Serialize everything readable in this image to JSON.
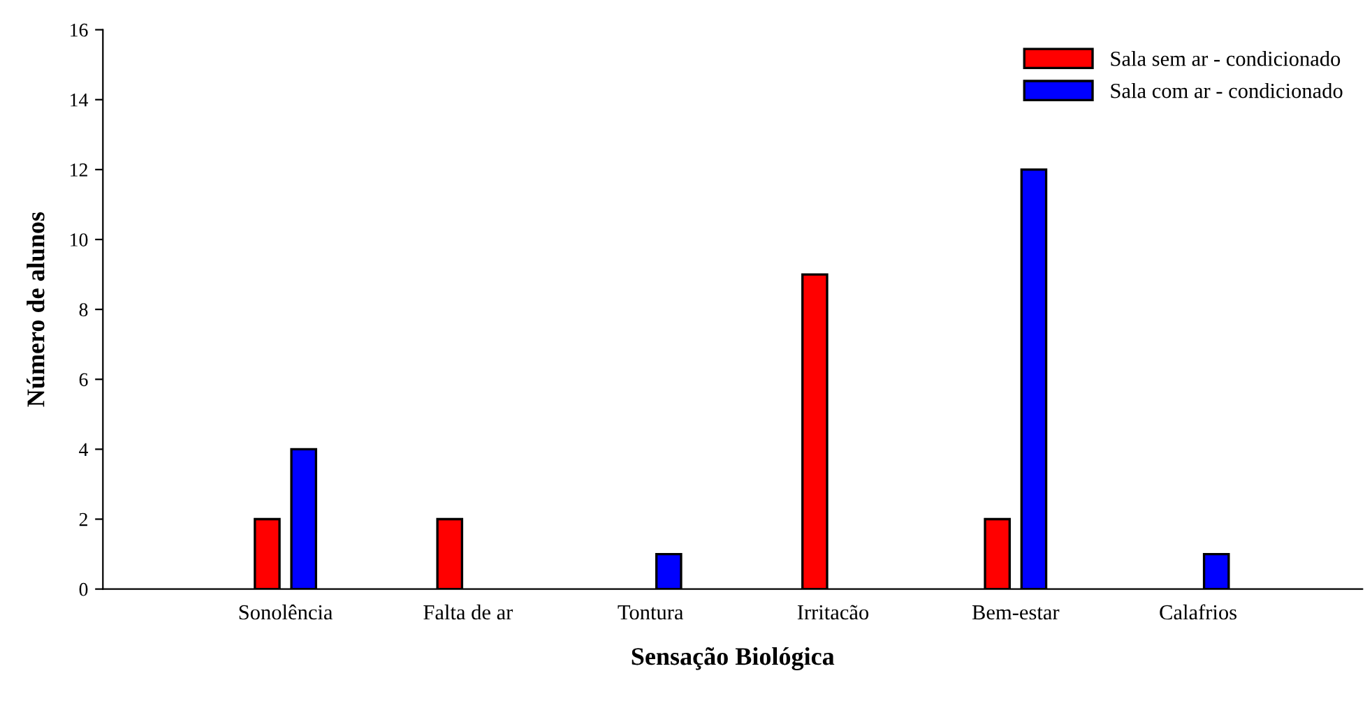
{
  "chart_data": {
    "type": "bar",
    "xlabel": "Sensação Biológica",
    "ylabel": "Número de alunos",
    "categories": [
      "Sonolência",
      "Falta de ar",
      "Tontura",
      "Irritacão",
      "Bem-estar",
      "Calafrios"
    ],
    "series": [
      {
        "name": "Sala sem ar - condicionado",
        "color": "#ff0000",
        "values": [
          2,
          2,
          0,
          9,
          2,
          0
        ]
      },
      {
        "name": "Sala com ar - condicionado",
        "color": "#0000ff",
        "values": [
          4,
          0,
          1,
          0,
          12,
          1
        ]
      }
    ],
    "ylim": [
      0,
      16
    ],
    "yticks": [
      0,
      2,
      4,
      6,
      8,
      10,
      12,
      14,
      16
    ],
    "grid": false,
    "legend": "top right"
  }
}
